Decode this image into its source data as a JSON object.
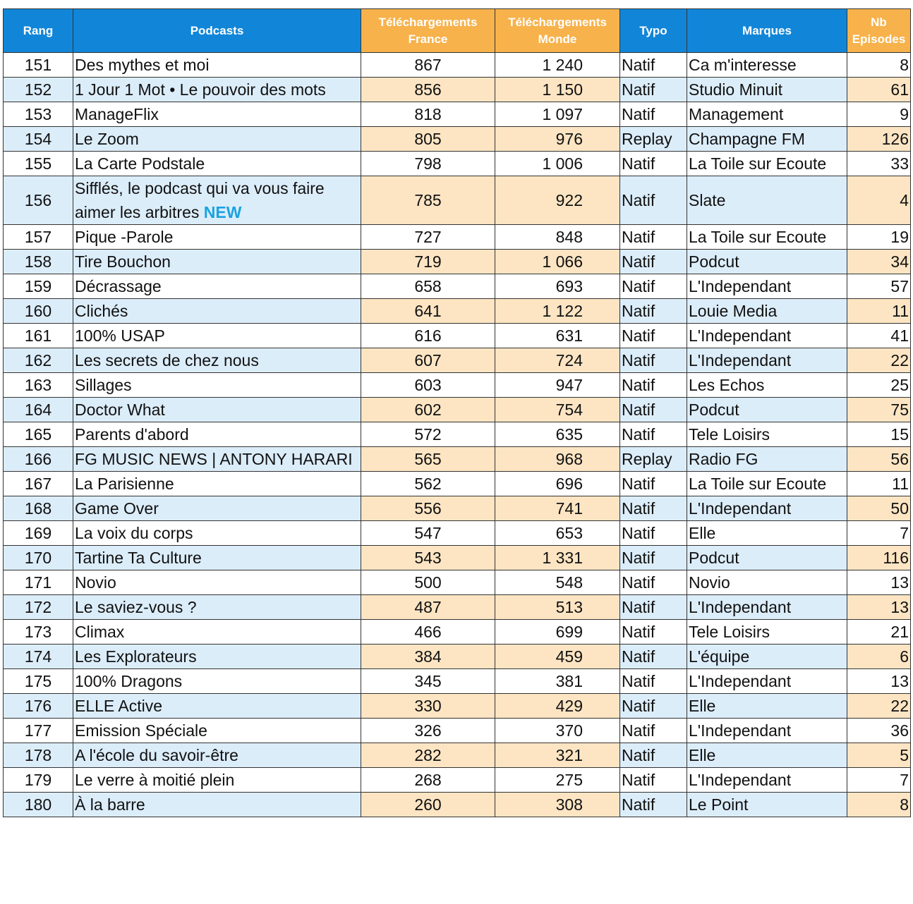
{
  "table": {
    "header": [
      "Rang",
      "Podcasts",
      "Téléchargements France",
      "Téléchargements Monde",
      "Typo",
      "Marques",
      "Nb Episodes"
    ],
    "rows": [
      {
        "cells": [
          151,
          "Des mythes et moi",
          867,
          "1 240",
          "Natif",
          "Ca m'interesse",
          8
        ]
      },
      {
        "cells": [
          152,
          "1 Jour 1 Mot • Le pouvoir des mots",
          856,
          "1 150",
          "Natif",
          "Studio Minuit",
          61
        ]
      },
      {
        "cells": [
          153,
          "ManageFlix",
          818,
          "1 097",
          "Natif",
          "Management",
          9
        ]
      },
      {
        "cells": [
          154,
          "Le Zoom",
          805,
          976,
          "Replay",
          "Champagne FM",
          126
        ]
      },
      {
        "cells": [
          155,
          "La Carte Podstale",
          798,
          "1 006",
          "Natif",
          "La Toile sur Ecoute",
          33
        ]
      },
      {
        "cells": [
          156,
          "Sifflés, le podcast qui va vous faire aimer les arbitres",
          785,
          922,
          "Natif",
          "Slate",
          4
        ],
        "badge": "NEW"
      },
      {
        "cells": [
          157,
          "Pique -Parole",
          727,
          848,
          "Natif",
          "La Toile sur Ecoute",
          19
        ]
      },
      {
        "cells": [
          158,
          "Tire Bouchon",
          719,
          "1 066",
          "Natif",
          "Podcut",
          34
        ]
      },
      {
        "cells": [
          159,
          "Décrassage",
          658,
          693,
          "Natif",
          "L'Independant",
          57
        ]
      },
      {
        "cells": [
          160,
          "Clichés",
          641,
          "1 122",
          "Natif",
          "Louie Media",
          11
        ]
      },
      {
        "cells": [
          161,
          "100% USAP",
          616,
          631,
          "Natif",
          "L'Independant",
          41
        ]
      },
      {
        "cells": [
          162,
          "Les secrets de chez nous",
          607,
          724,
          "Natif",
          "L'Independant",
          22
        ]
      },
      {
        "cells": [
          163,
          "Sillages",
          603,
          947,
          "Natif",
          "Les Echos",
          25
        ]
      },
      {
        "cells": [
          164,
          "Doctor What",
          602,
          754,
          "Natif",
          "Podcut",
          75
        ]
      },
      {
        "cells": [
          165,
          "Parents d'abord",
          572,
          635,
          "Natif",
          "Tele Loisirs",
          15
        ]
      },
      {
        "cells": [
          166,
          "FG MUSIC NEWS | ANTONY HARARI",
          565,
          968,
          "Replay",
          "Radio FG",
          56
        ]
      },
      {
        "cells": [
          167,
          "La Parisienne",
          562,
          696,
          "Natif",
          "La Toile sur Ecoute",
          11
        ]
      },
      {
        "cells": [
          168,
          "Game Over",
          556,
          741,
          "Natif",
          "L'Independant",
          50
        ]
      },
      {
        "cells": [
          169,
          "La voix du corps",
          547,
          653,
          "Natif",
          "Elle",
          7
        ]
      },
      {
        "cells": [
          170,
          "Tartine Ta Culture",
          543,
          "1 331",
          "Natif",
          "Podcut",
          116
        ]
      },
      {
        "cells": [
          171,
          "Novio",
          500,
          548,
          "Natif",
          "Novio",
          13
        ]
      },
      {
        "cells": [
          172,
          "Le saviez-vous ?",
          487,
          513,
          "Natif",
          "L'Independant",
          13
        ]
      },
      {
        "cells": [
          173,
          "Climax",
          466,
          699,
          "Natif",
          "Tele Loisirs",
          21
        ]
      },
      {
        "cells": [
          174,
          "Les Explorateurs",
          384,
          459,
          "Natif",
          "L'équipe",
          6
        ]
      },
      {
        "cells": [
          175,
          "100% Dragons",
          345,
          381,
          "Natif",
          "L'Independant",
          13
        ]
      },
      {
        "cells": [
          176,
          "ELLE Active",
          330,
          429,
          "Natif",
          "Elle",
          22
        ]
      },
      {
        "cells": [
          177,
          "Emission Spéciale",
          326,
          370,
          "Natif",
          "L'Independant",
          36
        ]
      },
      {
        "cells": [
          178,
          "A l'école du savoir-être",
          282,
          321,
          "Natif",
          "Elle",
          5
        ]
      },
      {
        "cells": [
          179,
          "Le verre à moitié plein",
          268,
          275,
          "Natif",
          "L'Independant",
          7
        ]
      },
      {
        "cells": [
          180,
          "À la barre",
          260,
          308,
          "Natif",
          "Le Point",
          8
        ]
      }
    ]
  }
}
